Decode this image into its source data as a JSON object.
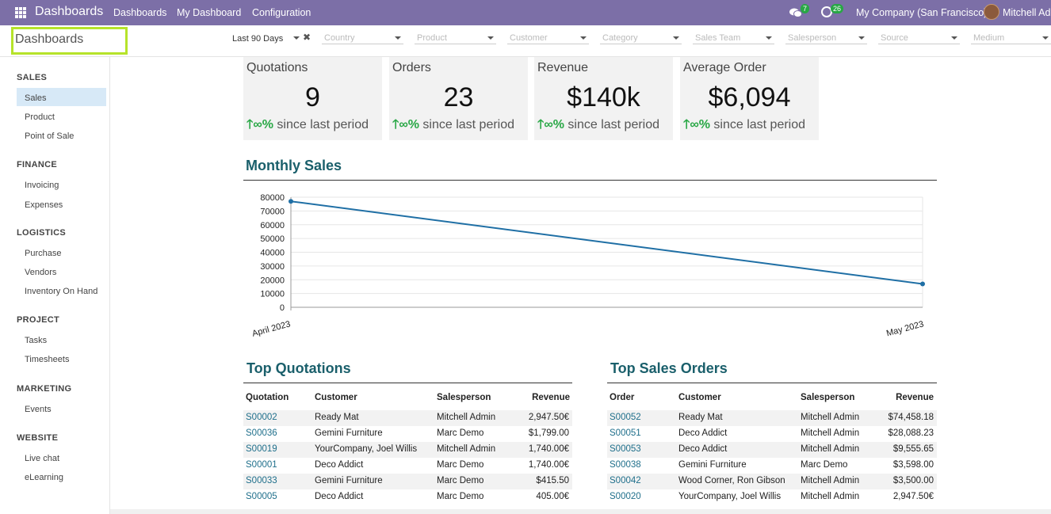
{
  "navbar": {
    "brand": "Dashboards",
    "menu": [
      "Dashboards",
      "My Dashboard",
      "Configuration"
    ],
    "chat_count": "7",
    "activity_count": "26",
    "company": "My Company (San Francisco)",
    "user": "Mitchell Admin",
    "bar_color": "#7c6fa7"
  },
  "control": {
    "title": "Dashboards",
    "date_filter": "Last 90 Days",
    "filters": [
      "Country",
      "Product",
      "Customer",
      "Category",
      "Sales Team",
      "Salesperson",
      "Source",
      "Medium"
    ]
  },
  "sidebar": {
    "sections": [
      {
        "title": "SALES",
        "items": [
          "Sales",
          "Product",
          "Point of Sale"
        ]
      },
      {
        "title": "FINANCE",
        "items": [
          "Invoicing",
          "Expenses"
        ]
      },
      {
        "title": "LOGISTICS",
        "items": [
          "Purchase",
          "Vendors",
          "Inventory On Hand"
        ]
      },
      {
        "title": "PROJECT",
        "items": [
          "Tasks",
          "Timesheets"
        ]
      },
      {
        "title": "MARKETING",
        "items": [
          "Events"
        ]
      },
      {
        "title": "WEBSITE",
        "items": [
          "Live chat",
          "eLearning"
        ]
      }
    ],
    "active": "Sales"
  },
  "kpis": [
    {
      "title": "Quotations",
      "value": "9",
      "trend": "∞%",
      "trend_text": " since last period"
    },
    {
      "title": "Orders",
      "value": "23",
      "trend": "∞%",
      "trend_text": " since last period"
    },
    {
      "title": "Revenue",
      "value": "$140k",
      "trend": "∞%",
      "trend_text": " since last period"
    },
    {
      "title": "Average Order",
      "value": "$6,094",
      "trend": "∞%",
      "trend_text": " since last period"
    }
  ],
  "monthly_sales": {
    "title": "Monthly Sales"
  },
  "chart_data": {
    "type": "line",
    "title": "Monthly Sales",
    "x": [
      "April 2023",
      "May 2023"
    ],
    "series": [
      {
        "values": [
          77000,
          17000
        ],
        "color": "#1f6fa5"
      }
    ],
    "ylim": [
      0,
      80000
    ],
    "yticks": [
      0,
      10000,
      20000,
      30000,
      40000,
      50000,
      60000,
      70000,
      80000
    ],
    "grid": true,
    "xlabel": "",
    "ylabel": ""
  },
  "top_quotations": {
    "title": "Top Quotations",
    "headers": [
      "Quotation",
      "Customer",
      "Salesperson",
      "Revenue"
    ],
    "rows": [
      [
        "S00002",
        "Ready Mat",
        "Mitchell Admin",
        "2,947.50€"
      ],
      [
        "S00036",
        "Gemini Furniture",
        "Marc Demo",
        "$1,799.00"
      ],
      [
        "S00019",
        "YourCompany, Joel Willis",
        "Mitchell Admin",
        "1,740.00€"
      ],
      [
        "S00001",
        "Deco Addict",
        "Marc Demo",
        "1,740.00€"
      ],
      [
        "S00033",
        "Gemini Furniture",
        "Marc Demo",
        "$415.50"
      ],
      [
        "S00005",
        "Deco Addict",
        "Marc Demo",
        "405.00€"
      ]
    ]
  },
  "top_orders": {
    "title": "Top Sales Orders",
    "headers": [
      "Order",
      "Customer",
      "Salesperson",
      "Revenue"
    ],
    "rows": [
      [
        "S00052",
        "Ready Mat",
        "Mitchell Admin",
        "$74,458.18"
      ],
      [
        "S00051",
        "Deco Addict",
        "Mitchell Admin",
        "$28,088.23"
      ],
      [
        "S00053",
        "Deco Addict",
        "Mitchell Admin",
        "$9,555.65"
      ],
      [
        "S00038",
        "Gemini Furniture",
        "Marc Demo",
        "$3,598.00"
      ],
      [
        "S00042",
        "Wood Corner, Ron Gibson",
        "Mitchell Admin",
        "$3,500.00"
      ],
      [
        "S00020",
        "YourCompany, Joel Willis",
        "Mitchell Admin",
        "2,947.50€"
      ]
    ]
  }
}
